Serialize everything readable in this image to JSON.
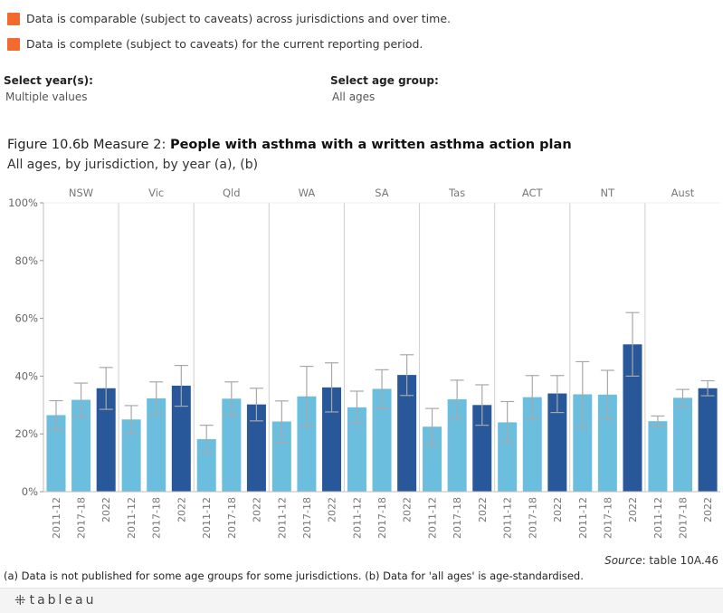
{
  "legend": [
    {
      "label": "Data is comparable (subject to caveats) across jurisdictions and over time.",
      "color": "#f26a2e"
    },
    {
      "label": "Data is complete (subject to caveats) for the current reporting period.",
      "color": "#f26a2e"
    }
  ],
  "filters": {
    "year": {
      "label": "Select year(s):",
      "value": "Multiple values"
    },
    "age": {
      "label": "Select age group:",
      "value": "All ages"
    }
  },
  "figure": {
    "title_prefix": "Figure 10.6b Measure 2: ",
    "title_bold": "People with asthma with a written asthma action plan",
    "subtitle": "All ages, by jurisdiction, by year (a), (b)"
  },
  "chart_data": {
    "type": "bar",
    "panels": [
      "NSW",
      "Vic",
      "Qld",
      "WA",
      "SA",
      "Tas",
      "ACT",
      "NT",
      "Aust"
    ],
    "categories": [
      "2011-12",
      "2017-18",
      "2022"
    ],
    "y_ticks": [
      "0%",
      "20%",
      "40%",
      "60%",
      "80%",
      "100%"
    ],
    "ylim": [
      0,
      100
    ],
    "grid": false,
    "colors": {
      "2011-12": "#6cbede",
      "2017-18": "#6cbede",
      "2022": "#28579a"
    },
    "values": {
      "NSW": [
        26.5,
        31.8,
        35.8
      ],
      "Vic": [
        25.0,
        32.3,
        36.7
      ],
      "Qld": [
        18.2,
        32.2,
        30.2
      ],
      "WA": [
        24.3,
        33.0,
        36.1
      ],
      "SA": [
        29.2,
        35.6,
        40.4
      ],
      "Tas": [
        22.5,
        32.0,
        30.0
      ],
      "ACT": [
        24.0,
        32.7,
        34.0
      ],
      "NT": [
        33.7,
        33.6,
        51.0
      ],
      "Aust": [
        24.4,
        32.5,
        35.8
      ]
    },
    "error_low": {
      "NSW": [
        21.4,
        26.0,
        28.5
      ],
      "Vic": [
        20.2,
        26.6,
        29.6
      ],
      "Qld": [
        13.4,
        26.4,
        24.5
      ],
      "WA": [
        17.0,
        22.6,
        27.6
      ],
      "SA": [
        23.6,
        28.8,
        33.3
      ],
      "Tas": [
        16.0,
        25.4,
        23.0
      ],
      "ACT": [
        16.8,
        25.0,
        27.4
      ],
      "NT": [
        22.2,
        25.2,
        40.0
      ],
      "Aust": [
        22.6,
        29.6,
        33.2
      ]
    },
    "error_high": {
      "NSW": [
        31.5,
        37.6,
        43.0
      ],
      "Vic": [
        29.8,
        38.0,
        43.7
      ],
      "Qld": [
        23.0,
        38.0,
        35.8
      ],
      "WA": [
        31.4,
        43.4,
        44.6
      ],
      "SA": [
        34.8,
        42.2,
        47.4
      ],
      "Tas": [
        28.8,
        38.6,
        37.0
      ],
      "ACT": [
        31.2,
        40.2,
        40.2
      ],
      "NT": [
        45.0,
        42.0,
        62.0
      ],
      "Aust": [
        26.2,
        35.4,
        38.4
      ]
    }
  },
  "source": {
    "prefix": "Source",
    "text": ": table 10A.46"
  },
  "footnote": "(a) Data is not published for some age groups for some jurisdictions. (b) Data for 'all ages' is age-standardised.",
  "footer": {
    "logo": "tableau"
  }
}
